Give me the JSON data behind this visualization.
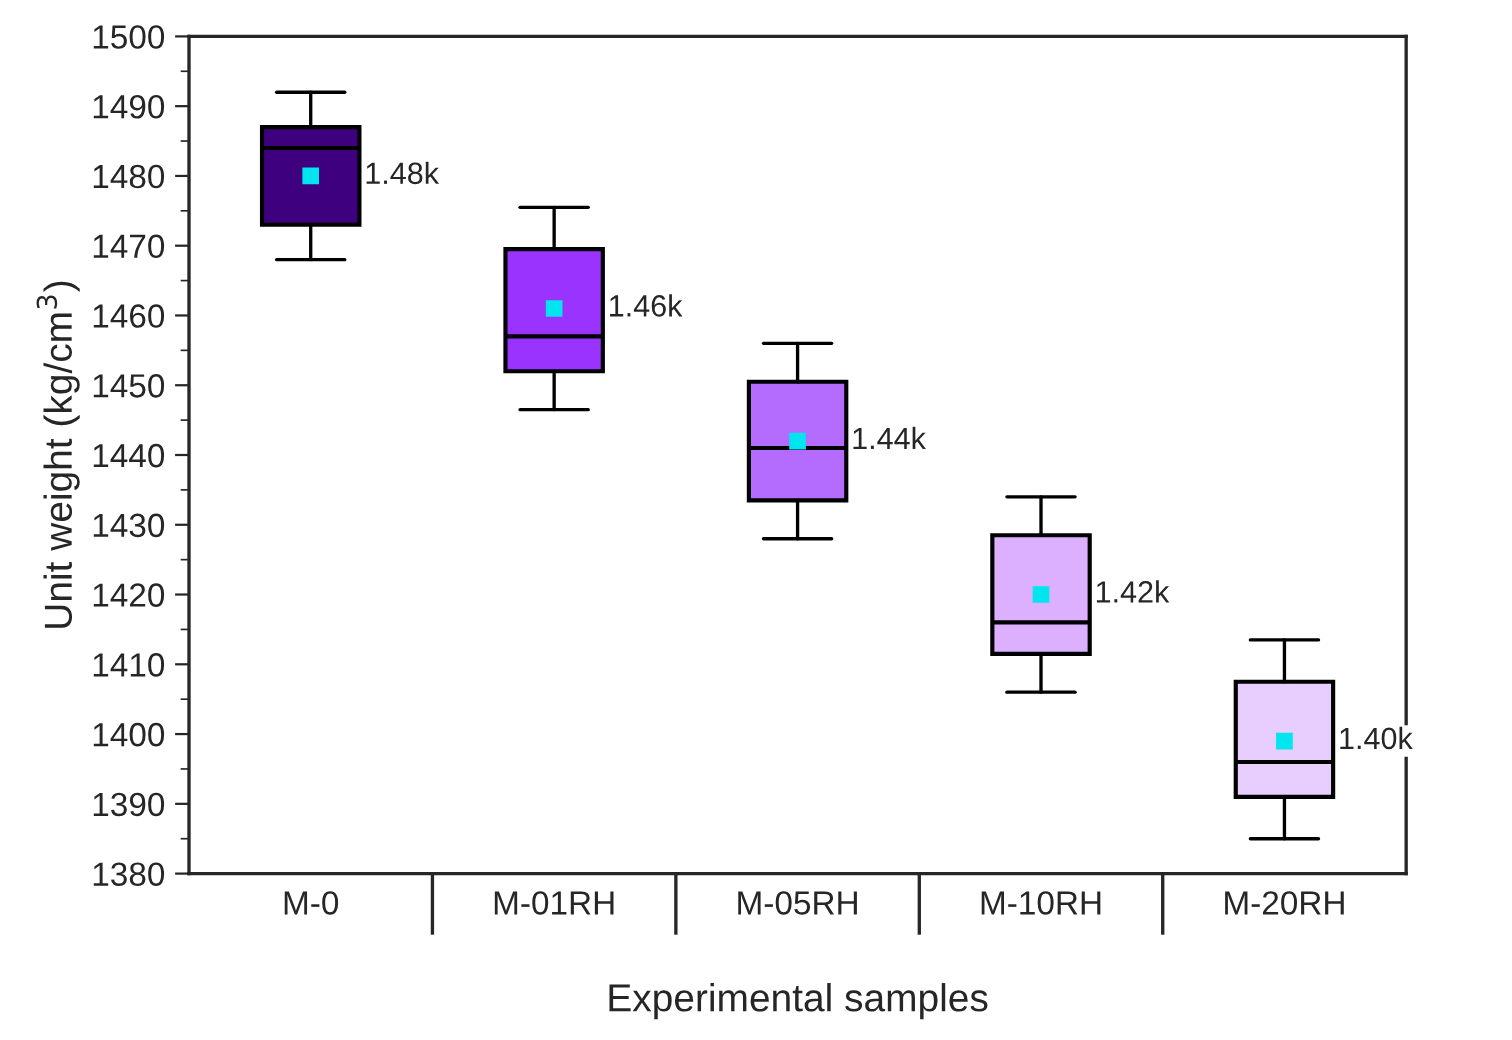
{
  "chart_data": {
    "type": "box",
    "xlabel": "Experimental samples",
    "ylabel": "Unit weight (kg/cm$^{3}$)",
    "categories": [
      "M-0",
      "M-01RH",
      "M-05RH",
      "M-10RH",
      "M-20RH"
    ],
    "colors": [
      "#3f0080",
      "#9b33ff",
      "#b46bff",
      "#dcb0ff",
      "#e8cdff"
    ],
    "boxes": [
      {
        "low": 1468,
        "q1": 1473,
        "median": 1484,
        "q3": 1487,
        "high": 1492,
        "mean": 1480
      },
      {
        "low": 1446.5,
        "q1": 1452,
        "median": 1457,
        "q3": 1469.5,
        "high": 1475.5,
        "mean": 1461
      },
      {
        "low": 1428,
        "q1": 1433.5,
        "median": 1441,
        "q3": 1450.5,
        "high": 1456,
        "mean": 1442
      },
      {
        "low": 1406,
        "q1": 1411.5,
        "median": 1416,
        "q3": 1428.5,
        "high": 1434,
        "mean": 1420
      },
      {
        "low": 1385,
        "q1": 1391,
        "median": 1396,
        "q3": 1407.5,
        "high": 1413.5,
        "mean": 1399
      }
    ],
    "annotations": [
      "1.48k",
      "1.46k",
      "1.44k",
      "1.42k",
      "1.40k"
    ],
    "ylim": [
      1380,
      1500
    ],
    "yticks": [
      1380,
      1390,
      1400,
      1410,
      1420,
      1430,
      1440,
      1450,
      1460,
      1470,
      1480,
      1490,
      1500
    ],
    "grid": false,
    "marker": "square"
  }
}
